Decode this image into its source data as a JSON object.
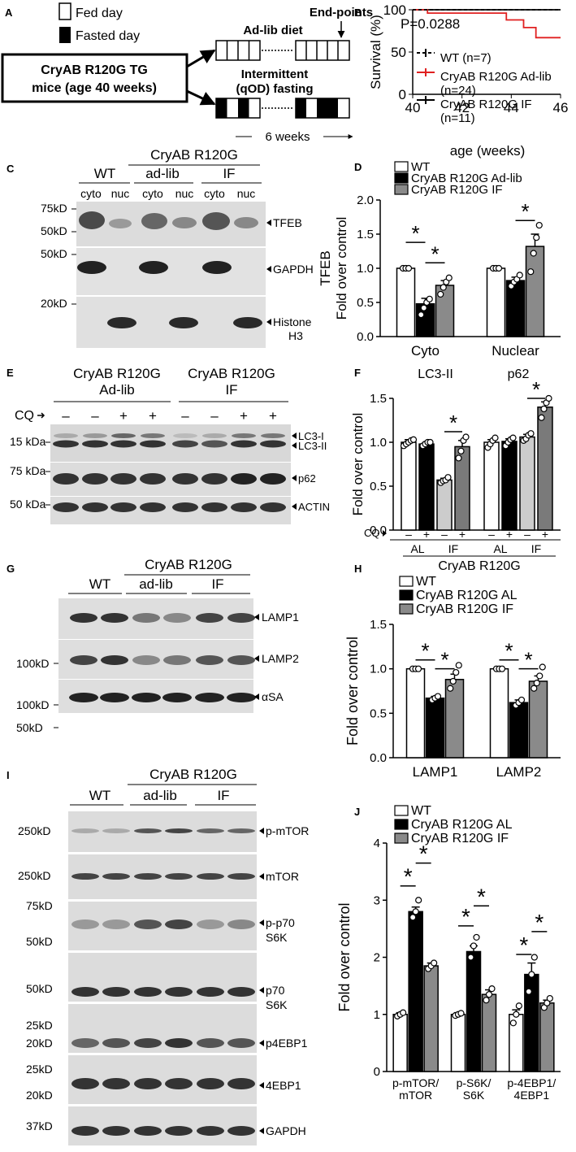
{
  "panels": {
    "A": {
      "letter": "A",
      "legend": [
        "Fed day",
        "Fasted day"
      ],
      "mice_box": [
        "CryAB R120G TG",
        "mice (age 40 weeks)"
      ],
      "arm_adlib": "Ad-lib diet",
      "arm_if": [
        "Intermittent",
        "(qOD) fasting"
      ],
      "endpoints": "End-points",
      "duration": "6 weeks"
    },
    "B": {
      "letter": "B",
      "pvalue": "P=0.0288"
    },
    "C": {
      "letter": "C",
      "group_top": "CryAB R120G",
      "groups": [
        "WT",
        "ad-lib",
        "IF"
      ],
      "lanes": [
        "cyto",
        "nuc",
        "cyto",
        "nuc",
        "cyto",
        "nuc"
      ],
      "markers": [
        "75kD",
        "50kD",
        "50kD",
        "20kD"
      ],
      "bands": [
        "TFEB",
        "GAPDH",
        "Histone",
        "H3"
      ]
    },
    "D": {
      "letter": "D"
    },
    "E": {
      "letter": "E",
      "groups": [
        [
          "CryAB R120G",
          "Ad-lib"
        ],
        [
          "CryAB R120G",
          "IF"
        ]
      ],
      "cq_label": "CQ",
      "cq_signs": [
        "–",
        "–",
        "+",
        "+",
        "–",
        "–",
        "+",
        "+"
      ],
      "markers": [
        "15 kDa",
        "75 kDa",
        "50 kDa"
      ],
      "bands": [
        "LC3-I",
        "LC3-II",
        "p62",
        "ACTIN"
      ]
    },
    "F": {
      "letter": "F"
    },
    "G": {
      "letter": "G",
      "group_top": "CryAB R120G",
      "groups": [
        "WT",
        "ad-lib",
        "IF"
      ],
      "markers": [
        "100kD",
        "100kD",
        "50kD"
      ],
      "bands": [
        "LAMP1",
        "LAMP2",
        "αSA"
      ]
    },
    "H": {
      "letter": "H"
    },
    "I": {
      "letter": "I",
      "group_top": "CryAB R120G",
      "groups": [
        "WT",
        "ad-lib",
        "IF"
      ],
      "markers": [
        "250kD",
        "250kD",
        "75kD",
        "50kD",
        "50kD",
        "25kD",
        "20kD",
        "25kD",
        "20kD",
        "37kD"
      ],
      "bands": [
        "p-mTOR",
        "mTOR",
        "p-p70",
        "S6K",
        "p70",
        "S6K",
        "p4EBP1",
        "4EBP1",
        "GAPDH"
      ]
    },
    "J": {
      "letter": "J"
    }
  },
  "chart_data": [
    {
      "panel": "B",
      "type": "line",
      "xlabel": "age (weeks)",
      "ylabel": "Survival (%)",
      "xlim": [
        40,
        46
      ],
      "ylim": [
        0,
        100
      ],
      "xticks": [
        40,
        42,
        44,
        46
      ],
      "yticks": [
        0,
        50,
        100
      ],
      "series": [
        {
          "name": "WT (n=7)",
          "color": "#000000",
          "dash": true,
          "x": [
            40,
            46
          ],
          "y": [
            100,
            100
          ]
        },
        {
          "name": "CryAB R120G Ad-lib (n=24)",
          "color": "#e02020",
          "x": [
            40,
            40.6,
            40.6,
            43.8,
            43.8,
            44.5,
            44.5,
            45.0,
            45.0,
            46
          ],
          "y": [
            100,
            100,
            96,
            96,
            88,
            88,
            79,
            79,
            67,
            67
          ]
        },
        {
          "name": "CryAB R120G IF (n=11)",
          "color": "#000000",
          "x": [
            40,
            46
          ],
          "y": [
            100,
            100
          ]
        }
      ]
    },
    {
      "panel": "D",
      "type": "bar",
      "ylabel": "TFEB Fold over control",
      "ylim": [
        0,
        2.0
      ],
      "yticks": [
        "0.0",
        "0.5",
        "1.0",
        "1.5",
        "2.0"
      ],
      "categories": [
        "Cyto",
        "Nuclear"
      ],
      "series": [
        {
          "name": "WT",
          "color": "#ffffff",
          "values": [
            1.0,
            1.0
          ],
          "err": [
            0.01,
            0.01
          ],
          "points": [
            [
              1.0,
              1.0,
              1.0
            ],
            [
              1.0,
              1.0,
              1.0
            ]
          ]
        },
        {
          "name": "CryAB R120G Ad-lib",
          "color": "#000000",
          "values": [
            0.48,
            0.82
          ],
          "err": [
            0.08,
            0.05
          ],
          "points": [
            [
              0.32,
              0.42,
              0.5,
              0.55
            ],
            [
              0.74,
              0.8,
              0.84,
              0.9
            ]
          ]
        },
        {
          "name": "CryAB R120G IF",
          "color": "#8a8a8a",
          "values": [
            0.75,
            1.32
          ],
          "err": [
            0.07,
            0.18
          ],
          "points": [
            [
              0.62,
              0.72,
              0.8,
              0.86
            ],
            [
              0.95,
              1.22,
              1.45,
              1.63
            ]
          ]
        }
      ],
      "sig": [
        [
          0,
          0,
          1,
          1.38
        ],
        [
          0,
          1,
          2,
          1.08
        ],
        [
          1,
          1,
          2,
          1.7
        ]
      ]
    },
    {
      "panel": "F",
      "type": "bar",
      "ylabel": "Fold over control",
      "ylim": [
        0,
        1.5
      ],
      "yticks": [
        "0.0",
        "0.5",
        "1.0",
        "1.5"
      ],
      "categories": [
        "LC3-II",
        "p62"
      ],
      "cq": [
        "–",
        "+",
        "–",
        "+",
        "–",
        "+",
        "–",
        "+"
      ],
      "diet": [
        "AL",
        "IF",
        "AL",
        "IF"
      ],
      "group_label": "CryAB R120G",
      "cq_label": "CQ",
      "bars": [
        {
          "v": 1.0,
          "e": 0.03,
          "c": "#ffffff",
          "p": [
            0.96,
            0.98,
            1.0,
            1.02,
            1.03
          ]
        },
        {
          "v": 0.98,
          "e": 0.02,
          "c": "#000000",
          "p": [
            0.96,
            0.98,
            1.0,
            1.0
          ]
        },
        {
          "v": 0.57,
          "e": 0.02,
          "c": "#cccccc",
          "p": [
            0.54,
            0.56,
            0.57,
            0.6
          ]
        },
        {
          "v": 0.95,
          "e": 0.07,
          "c": "#7a7a7a",
          "p": [
            0.82,
            0.9,
            1.02,
            1.06
          ]
        },
        {
          "v": 1.0,
          "e": 0.03,
          "c": "#ffffff",
          "p": [
            0.94,
            0.98,
            1.02,
            1.05
          ]
        },
        {
          "v": 1.01,
          "e": 0.03,
          "c": "#000000",
          "p": [
            0.96,
            1.0,
            1.03,
            1.05
          ]
        },
        {
          "v": 1.06,
          "e": 0.03,
          "c": "#cccccc",
          "p": [
            1.02,
            1.04,
            1.08,
            1.1
          ]
        },
        {
          "v": 1.4,
          "e": 0.06,
          "c": "#7a7a7a",
          "p": [
            1.28,
            1.38,
            1.45,
            1.5
          ]
        }
      ],
      "sig": [
        [
          2,
          3,
          1.12
        ],
        [
          6,
          7,
          1.5
        ]
      ]
    },
    {
      "panel": "H",
      "type": "bar",
      "ylabel": "Fold over control",
      "ylim": [
        0,
        1.5
      ],
      "yticks": [
        "0.0",
        "0.5",
        "1.0",
        "1.5"
      ],
      "categories": [
        "LAMP1",
        "LAMP2"
      ],
      "series": [
        {
          "name": "WT",
          "color": "#ffffff",
          "values": [
            1.0,
            1.0
          ],
          "err": [
            0.01,
            0.01
          ],
          "points": [
            [
              1.0,
              1.0,
              1.0
            ],
            [
              1.0,
              1.0,
              1.0
            ]
          ]
        },
        {
          "name": "CryAB R120G AL",
          "color": "#000000",
          "values": [
            0.67,
            0.62
          ],
          "err": [
            0.02,
            0.03
          ],
          "points": [
            [
              0.65,
              0.67,
              0.69
            ],
            [
              0.59,
              0.62,
              0.65
            ]
          ]
        },
        {
          "name": "CryAB R120G IF",
          "color": "#8a8a8a",
          "values": [
            0.88,
            0.86
          ],
          "err": [
            0.06,
            0.06
          ],
          "points": [
            [
              0.78,
              0.86,
              0.96,
              1.04
            ],
            [
              0.78,
              0.84,
              0.92,
              1.02
            ]
          ]
        }
      ],
      "sig": [
        [
          0,
          0,
          1,
          1.1
        ],
        [
          0,
          1,
          2,
          1.0
        ],
        [
          1,
          0,
          1,
          1.1
        ],
        [
          1,
          1,
          2,
          1.0
        ]
      ]
    },
    {
      "panel": "J",
      "type": "bar",
      "ylabel": "Fold over control",
      "ylim": [
        0,
        4
      ],
      "yticks": [
        "0",
        "1",
        "2",
        "3",
        "4"
      ],
      "categories": [
        "p-mTOR/ mTOR",
        "p-S6K/ S6K",
        "p-4EBP1/ 4EBP1"
      ],
      "series": [
        {
          "name": "WT",
          "color": "#ffffff",
          "values": [
            1.0,
            1.0,
            1.0
          ],
          "err": [
            0.03,
            0.03,
            0.08
          ],
          "points": [
            [
              0.97,
              1.0,
              1.03
            ],
            [
              0.98,
              1.0,
              1.02
            ],
            [
              0.85,
              1.0,
              1.15
            ]
          ]
        },
        {
          "name": "CryAB R120G AL",
          "color": "#000000",
          "values": [
            2.8,
            2.1,
            1.7
          ],
          "err": [
            0.08,
            0.1,
            0.2
          ],
          "points": [
            [
              2.7,
              2.8,
              3.0
            ],
            [
              2.0,
              2.2,
              2.35
            ],
            [
              1.4,
              1.7,
              2.0
            ]
          ]
        },
        {
          "name": "CryAB R120G IF",
          "color": "#8a8a8a",
          "values": [
            1.85,
            1.35,
            1.2
          ],
          "err": [
            0.05,
            0.08,
            0.05
          ],
          "points": [
            [
              1.8,
              1.85,
              1.9
            ],
            [
              1.25,
              1.35,
              1.45
            ],
            [
              1.12,
              1.2,
              1.28
            ]
          ]
        }
      ],
      "sig": [
        [
          0,
          0,
          1,
          3.25
        ],
        [
          0,
          1,
          2,
          3.65
        ],
        [
          1,
          0,
          1,
          2.55
        ],
        [
          1,
          1,
          2,
          2.9
        ],
        [
          2,
          0,
          1,
          2.05
        ],
        [
          2,
          1,
          2,
          2.45
        ]
      ]
    }
  ]
}
